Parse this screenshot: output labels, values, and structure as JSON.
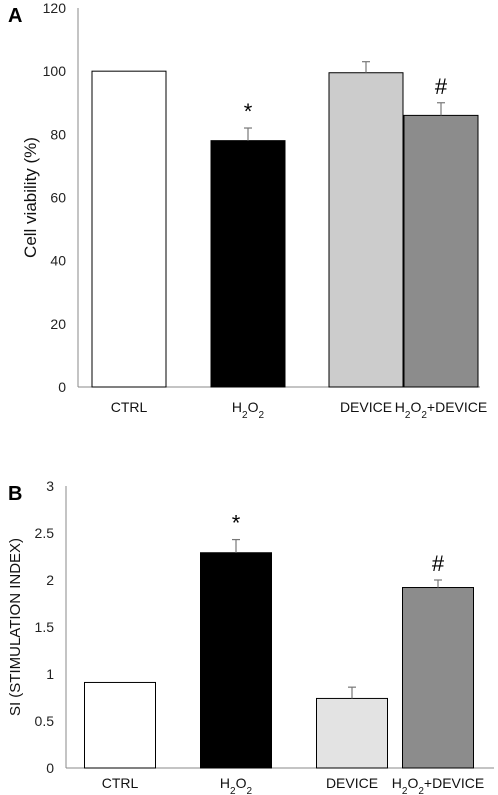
{
  "chart_data": [
    {
      "type": "bar",
      "panel_label": "A",
      "categories": [
        "CTRL",
        "H2O2",
        "DEVICE",
        "H2O2+DEVICE"
      ],
      "values": [
        100,
        78,
        99.5,
        86
      ],
      "errors": [
        0,
        4,
        3.5,
        4
      ],
      "annotations": [
        "",
        "*",
        "",
        "#"
      ],
      "colors": [
        "#ffffff",
        "#000000",
        "#cccccc",
        "#8c8c8c"
      ],
      "ylabel": "Cell viability (%)",
      "ylim": [
        0,
        120
      ],
      "yticks": [
        0,
        20,
        40,
        60,
        80,
        100,
        120
      ],
      "grid": false
    },
    {
      "type": "bar",
      "panel_label": "B",
      "categories": [
        "CTRL",
        "H2O2",
        "DEVICE",
        "H2O2+DEVICE"
      ],
      "values": [
        0.91,
        2.29,
        0.74,
        1.92
      ],
      "errors": [
        0,
        0.14,
        0.12,
        0.08
      ],
      "annotations": [
        "",
        "*",
        "",
        "#"
      ],
      "colors": [
        "#ffffff",
        "#000000",
        "#e3e3e3",
        "#8c8c8c"
      ],
      "ylabel": "SI (STIMULATION INDEX)",
      "ylim": [
        0,
        3
      ],
      "yticks": [
        0,
        0.5,
        1,
        1.5,
        2,
        2.5,
        3
      ],
      "grid": false
    }
  ]
}
